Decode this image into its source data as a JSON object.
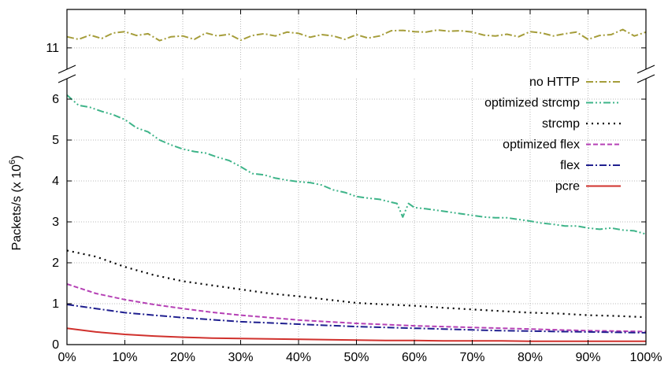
{
  "chart_data": {
    "type": "line",
    "xlabel": "",
    "ylabel": "Packets/s (x 10^6)",
    "ylabel_base": "Packets/s (x 10",
    "ylabel_exp": "6",
    "ylabel_close": ")",
    "x_ticks": [
      "0%",
      "10%",
      "20%",
      "30%",
      "40%",
      "50%",
      "60%",
      "70%",
      "80%",
      "90%",
      "100%"
    ],
    "xlim": [
      0,
      100
    ],
    "ylim_lower": [
      0,
      6.5
    ],
    "ylim_upper": [
      10.5,
      11.9
    ],
    "y_ticks_lower": [
      "0",
      "1",
      "2",
      "3",
      "4",
      "5",
      "6"
    ],
    "y_ticks_upper": [
      "11"
    ],
    "broken_axis": true,
    "grid": true,
    "legend_position": "right",
    "series": [
      {
        "name": "no HTTP",
        "color": "#a59d3a",
        "dash": "dash-dot",
        "x": [
          0,
          2,
          4,
          6,
          8,
          10,
          12,
          14,
          16,
          18,
          20,
          22,
          24,
          26,
          28,
          30,
          32,
          34,
          36,
          38,
          40,
          42,
          44,
          46,
          48,
          50,
          52,
          54,
          56,
          58,
          60,
          62,
          64,
          66,
          68,
          70,
          72,
          74,
          76,
          78,
          80,
          82,
          84,
          86,
          88,
          90,
          92,
          94,
          96,
          98,
          100
        ],
        "values": [
          11.26,
          11.2,
          11.3,
          11.22,
          11.35,
          11.38,
          11.29,
          11.33,
          11.17,
          11.26,
          11.28,
          11.2,
          11.35,
          11.28,
          11.32,
          11.18,
          11.29,
          11.33,
          11.28,
          11.37,
          11.34,
          11.25,
          11.31,
          11.28,
          11.2,
          11.31,
          11.23,
          11.28,
          11.4,
          11.41,
          11.38,
          11.37,
          11.42,
          11.39,
          11.4,
          11.37,
          11.3,
          11.28,
          11.32,
          11.26,
          11.38,
          11.35,
          11.28,
          11.33,
          11.37,
          11.2,
          11.29,
          11.31,
          11.43,
          11.28,
          11.37
        ]
      },
      {
        "name": "optimized strcmp",
        "color": "#3eb489",
        "dash": "dash-dot-dot",
        "x": [
          0,
          2,
          4,
          6,
          8,
          10,
          12,
          14,
          16,
          18,
          20,
          22,
          24,
          26,
          28,
          30,
          32,
          34,
          36,
          38,
          40,
          42,
          44,
          46,
          48,
          50,
          52,
          54,
          56,
          57,
          58,
          59,
          60,
          62,
          64,
          66,
          68,
          70,
          72,
          74,
          76,
          78,
          80,
          82,
          84,
          86,
          88,
          90,
          92,
          94,
          96,
          98,
          100
        ],
        "values": [
          6.1,
          5.85,
          5.8,
          5.7,
          5.62,
          5.5,
          5.3,
          5.2,
          5.0,
          4.88,
          4.78,
          4.72,
          4.68,
          4.58,
          4.5,
          4.35,
          4.18,
          4.15,
          4.07,
          4.02,
          3.98,
          3.96,
          3.9,
          3.78,
          3.72,
          3.62,
          3.58,
          3.55,
          3.48,
          3.45,
          3.12,
          3.45,
          3.35,
          3.32,
          3.28,
          3.24,
          3.2,
          3.16,
          3.12,
          3.1,
          3.1,
          3.06,
          3.02,
          2.97,
          2.94,
          2.9,
          2.9,
          2.85,
          2.82,
          2.85,
          2.8,
          2.78,
          2.7
        ]
      },
      {
        "name": "strcmp",
        "color": "#000000",
        "dash": "dot",
        "x": [
          0,
          5,
          10,
          15,
          20,
          25,
          30,
          35,
          40,
          45,
          50,
          55,
          60,
          65,
          70,
          75,
          80,
          85,
          90,
          95,
          100
        ],
        "values": [
          2.3,
          2.15,
          1.9,
          1.7,
          1.55,
          1.45,
          1.35,
          1.25,
          1.18,
          1.1,
          1.02,
          0.98,
          0.95,
          0.9,
          0.86,
          0.82,
          0.78,
          0.76,
          0.72,
          0.7,
          0.67
        ]
      },
      {
        "name": "optimized flex",
        "color": "#b540b5",
        "dash": "dash",
        "x": [
          0,
          5,
          10,
          15,
          20,
          25,
          30,
          35,
          40,
          45,
          50,
          55,
          60,
          65,
          70,
          75,
          80,
          85,
          90,
          95,
          100
        ],
        "values": [
          1.48,
          1.25,
          1.1,
          0.98,
          0.88,
          0.79,
          0.72,
          0.66,
          0.6,
          0.56,
          0.52,
          0.49,
          0.46,
          0.44,
          0.42,
          0.4,
          0.38,
          0.36,
          0.34,
          0.33,
          0.32
        ]
      },
      {
        "name": "flex",
        "color": "#1f1f8f",
        "dash": "dash-dot",
        "x": [
          0,
          5,
          10,
          15,
          20,
          25,
          30,
          35,
          40,
          45,
          50,
          55,
          60,
          65,
          70,
          75,
          80,
          85,
          90,
          95,
          100
        ],
        "values": [
          0.98,
          0.88,
          0.78,
          0.72,
          0.66,
          0.61,
          0.56,
          0.53,
          0.5,
          0.47,
          0.44,
          0.42,
          0.4,
          0.38,
          0.36,
          0.34,
          0.33,
          0.32,
          0.31,
          0.3,
          0.29
        ]
      },
      {
        "name": "pcre",
        "color": "#d0312d",
        "dash": "solid",
        "x": [
          0,
          5,
          10,
          15,
          20,
          25,
          30,
          35,
          40,
          45,
          50,
          55,
          60,
          65,
          70,
          75,
          80,
          85,
          90,
          95,
          100
        ],
        "values": [
          0.4,
          0.31,
          0.25,
          0.21,
          0.18,
          0.16,
          0.15,
          0.14,
          0.13,
          0.12,
          0.11,
          0.1,
          0.1,
          0.09,
          0.09,
          0.09,
          0.08,
          0.08,
          0.08,
          0.08,
          0.08
        ]
      }
    ]
  }
}
